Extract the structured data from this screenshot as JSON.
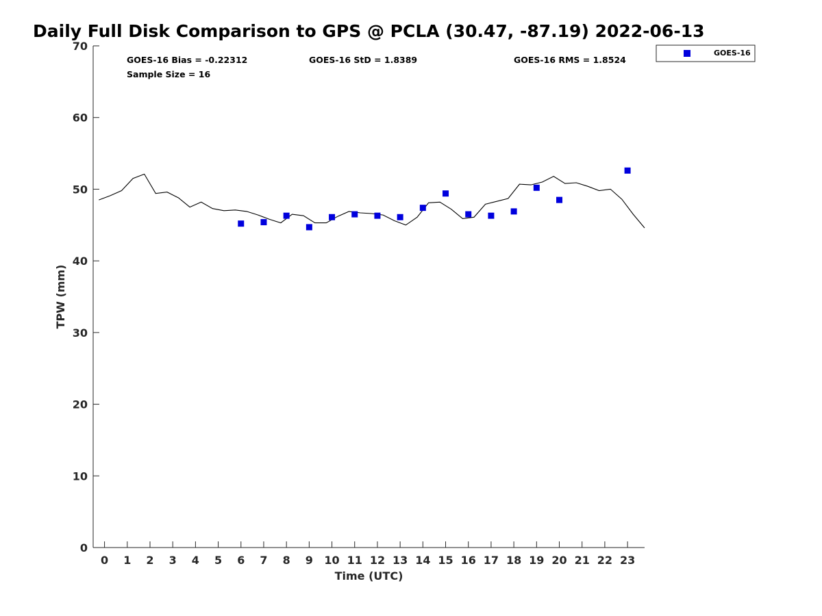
{
  "chart_data": {
    "type": "scatter",
    "title": "Daily Full Disk Comparison to GPS @ PCLA (30.47, -87.19) 2022-06-13",
    "xlabel": "Time (UTC)",
    "ylabel": "TPW (mm)",
    "xlim": [
      -0.5,
      23.75
    ],
    "ylim": [
      0,
      70
    ],
    "x_ticks": [
      0,
      1,
      2,
      3,
      4,
      5,
      6,
      7,
      8,
      9,
      10,
      11,
      12,
      13,
      14,
      15,
      16,
      17,
      18,
      19,
      20,
      21,
      22,
      23
    ],
    "y_ticks": [
      0,
      10,
      20,
      30,
      40,
      50,
      60,
      70
    ],
    "grid": false,
    "legend_position": "top-right-outside",
    "stats": {
      "bias": "GOES-16 Bias = -0.22312",
      "std": "GOES-16 StD = 1.8389",
      "rms": "GOES-16 RMS = 1.8524",
      "sample_size": "Sample Size = 16"
    },
    "series": [
      {
        "name": "GOES-16",
        "kind": "scatter",
        "marker": "square",
        "color": "#0000dd",
        "x": [
          6,
          7,
          8,
          9,
          10,
          11,
          12,
          13,
          14,
          15,
          16,
          17,
          18,
          19,
          20,
          23
        ],
        "y": [
          45.2,
          45.4,
          46.3,
          44.7,
          46.1,
          46.5,
          46.3,
          46.1,
          47.4,
          49.4,
          46.5,
          46.3,
          46.9,
          50.2,
          48.5,
          52.6
        ]
      },
      {
        "kind": "line",
        "color": "#000000",
        "x": [
          -0.25,
          0.25,
          0.75,
          1.25,
          1.75,
          2.25,
          2.75,
          3.25,
          3.75,
          4.25,
          4.75,
          5.25,
          5.75,
          6.25,
          6.75,
          7.25,
          7.75,
          8.25,
          8.75,
          9.25,
          9.75,
          10.25,
          10.75,
          11.25,
          11.75,
          12.25,
          12.75,
          13.25,
          13.75,
          14.25,
          14.75,
          15.25,
          15.75,
          16.25,
          16.75,
          17.25,
          17.75,
          18.25,
          18.75,
          19.25,
          19.75,
          20.25,
          20.75,
          21.25,
          21.75,
          22.25,
          22.75,
          23.25,
          23.75
        ],
        "y": [
          48.5,
          49.1,
          49.8,
          51.5,
          52.1,
          49.4,
          49.6,
          48.8,
          47.5,
          48.2,
          47.3,
          47.0,
          47.1,
          46.9,
          46.4,
          45.8,
          45.3,
          46.5,
          46.3,
          45.3,
          45.3,
          46.2,
          46.9,
          46.7,
          46.6,
          46.4,
          45.6,
          45.0,
          46.1,
          48.1,
          48.2,
          47.2,
          45.9,
          46.1,
          47.9,
          48.3,
          48.7,
          50.7,
          50.6,
          51.0,
          51.8,
          50.8,
          50.9,
          50.4,
          49.8,
          50.0,
          48.6,
          46.5,
          44.6
        ]
      }
    ]
  }
}
